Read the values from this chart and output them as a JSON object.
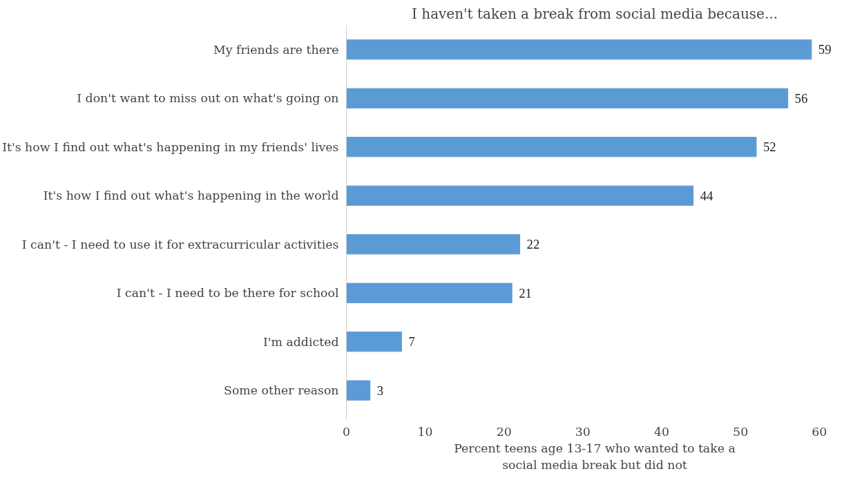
{
  "chart_data": {
    "type": "bar",
    "orientation": "horizontal",
    "title": "I haven't taken a break from social media because...",
    "xlabel": "Percent teens age 13-17 who wanted to take a\nsocial media break but did not",
    "categories": [
      "My friends are there",
      "I don't want to miss out on what's going on",
      "It's how I find out what's happening in my friends' lives",
      "It's how I find out what's happening in the world",
      "I can't - I need to use it for extracurricular activities",
      "I can't - I need to be there for school",
      "I'm addicted",
      "Some other reason"
    ],
    "values": [
      59,
      56,
      52,
      44,
      22,
      21,
      7,
      3
    ],
    "color": "#5b9bd5",
    "xlim": [
      0,
      60
    ],
    "xticks": [
      0,
      10,
      20,
      30,
      40,
      50,
      60
    ],
    "grid": false,
    "data_labels": true
  }
}
